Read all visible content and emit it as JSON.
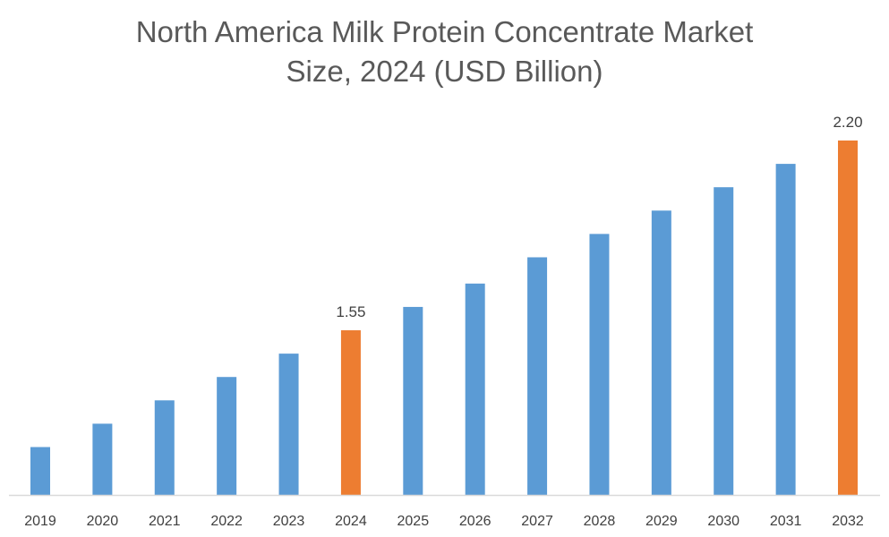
{
  "chart_data": {
    "type": "bar",
    "title_line1": "North America Milk Protein Concentrate Market",
    "title_line2": "Size, 2024 (USD Billion)",
    "xlabel": "",
    "ylabel": "",
    "categories": [
      "2019",
      "2020",
      "2021",
      "2022",
      "2023",
      "2024",
      "2025",
      "2026",
      "2027",
      "2028",
      "2029",
      "2030",
      "2031",
      "2032"
    ],
    "values": [
      1.15,
      1.23,
      1.31,
      1.39,
      1.47,
      1.55,
      1.63,
      1.71,
      1.8,
      1.88,
      1.96,
      2.04,
      2.12,
      2.2
    ],
    "data_labels": {
      "2024": "1.55",
      "2032": "2.20"
    },
    "highlight": [
      "2024",
      "2032"
    ],
    "ylim": [
      0.986,
      2.2
    ],
    "y_axis_visible": false,
    "grid": false,
    "colors": {
      "bar": "#5B9BD5",
      "highlight": "#ED7D31",
      "axis": "#D9D9D9"
    }
  }
}
